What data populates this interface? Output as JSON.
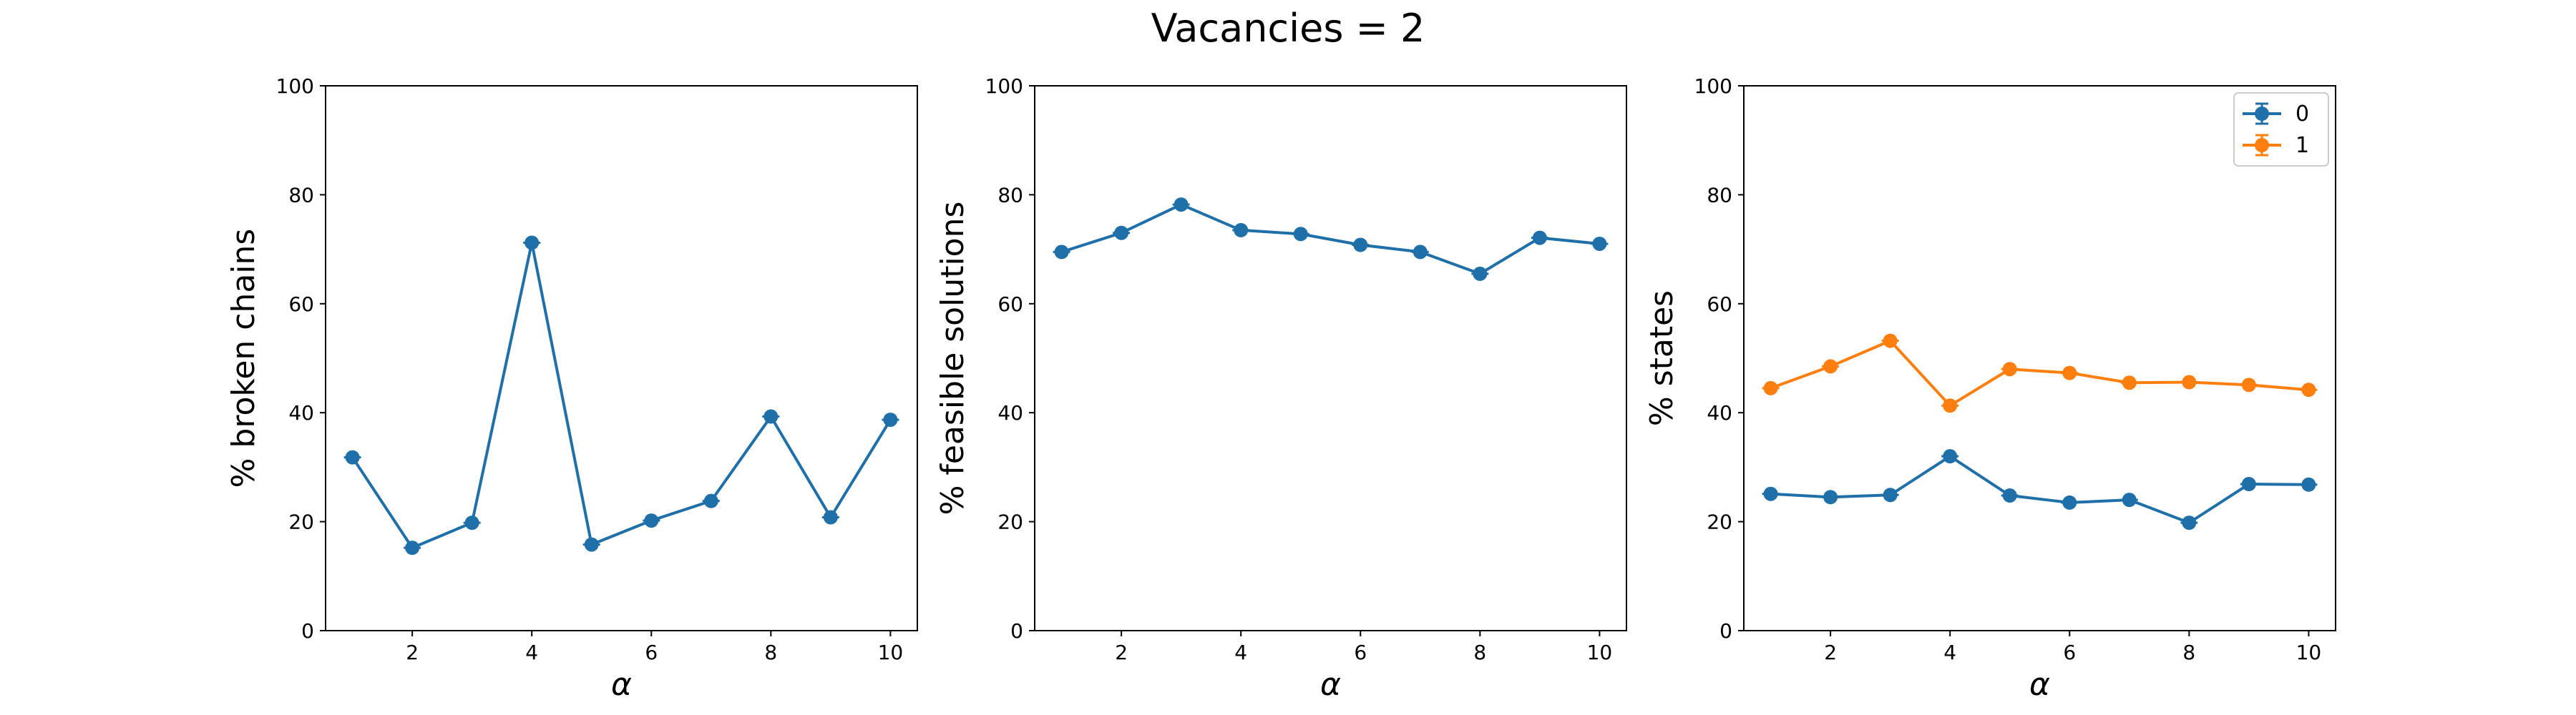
{
  "figure": {
    "title": "Vacancies = 2"
  },
  "colors": {
    "series_0": "#1f6fa8",
    "series_1": "#ff7f0e",
    "axes": "#000000",
    "background": "#ffffff"
  },
  "chart_data": [
    {
      "type": "line",
      "title": "",
      "xlabel": "α",
      "ylabel": "% broken chains",
      "xlim": [
        0.55,
        10.45
      ],
      "ylim": [
        0,
        100
      ],
      "xticks": [
        2,
        4,
        6,
        8,
        10
      ],
      "yticks": [
        0,
        20,
        40,
        60,
        80,
        100
      ],
      "grid": false,
      "legend": null,
      "x": [
        1,
        2,
        3,
        4,
        5,
        6,
        7,
        8,
        9,
        10
      ],
      "series": [
        {
          "values": [
            31.8,
            15.2,
            19.8,
            71.2,
            15.8,
            20.2,
            23.8,
            39.3,
            20.8,
            38.7
          ],
          "color": "#1f6fa8",
          "marker": "circle",
          "error_bars": true
        }
      ]
    },
    {
      "type": "line",
      "title": "",
      "xlabel": "α",
      "ylabel": "% feasible solutions",
      "xlim": [
        0.55,
        10.45
      ],
      "ylim": [
        0,
        100
      ],
      "xticks": [
        2,
        4,
        6,
        8,
        10
      ],
      "yticks": [
        0,
        20,
        40,
        60,
        80,
        100
      ],
      "grid": false,
      "legend": null,
      "x": [
        1,
        2,
        3,
        4,
        5,
        6,
        7,
        8,
        9,
        10
      ],
      "series": [
        {
          "values": [
            69.5,
            73.0,
            78.2,
            73.5,
            72.8,
            70.8,
            69.5,
            65.5,
            72.1,
            71.0
          ],
          "color": "#1f6fa8",
          "marker": "circle",
          "error_bars": true
        }
      ]
    },
    {
      "type": "line",
      "title": "",
      "xlabel": "α",
      "ylabel": "% states",
      "xlim": [
        0.55,
        10.45
      ],
      "ylim": [
        0,
        100
      ],
      "xticks": [
        2,
        4,
        6,
        8,
        10
      ],
      "yticks": [
        0,
        20,
        40,
        60,
        80,
        100
      ],
      "grid": false,
      "legend": "top-right",
      "x": [
        1,
        2,
        3,
        4,
        5,
        6,
        7,
        8,
        9,
        10
      ],
      "series": [
        {
          "name": "0",
          "values": [
            25.1,
            24.5,
            24.9,
            32.0,
            24.8,
            23.5,
            24.0,
            19.8,
            26.9,
            26.8
          ],
          "color": "#1f6fa8",
          "marker": "circle",
          "error_bars": true
        },
        {
          "name": "1",
          "values": [
            44.5,
            48.5,
            53.2,
            41.3,
            48.0,
            47.3,
            45.5,
            45.6,
            45.1,
            44.2
          ],
          "color": "#ff7f0e",
          "marker": "circle",
          "error_bars": true
        }
      ]
    }
  ]
}
